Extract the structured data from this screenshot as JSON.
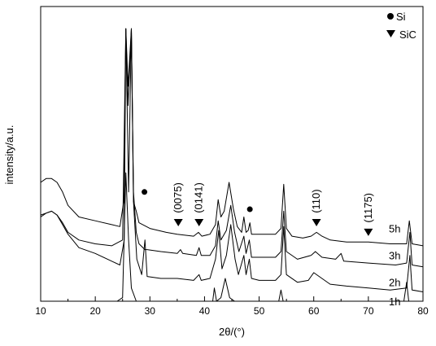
{
  "chart_data": {
    "type": "line",
    "title": "",
    "xlabel": "2θ/(°)",
    "ylabel": "intensity/a.u.",
    "xlim": [
      10,
      80
    ],
    "x_ticks": [
      10,
      20,
      30,
      40,
      50,
      60,
      70,
      80
    ],
    "x_tick_labels": [
      "10",
      "20",
      "30",
      "40",
      "50",
      "60",
      "70",
      "80"
    ],
    "y_ticks": false,
    "grid": false,
    "legend": {
      "position": "top-right",
      "entries": [
        {
          "marker": "circle",
          "label": "Si"
        },
        {
          "marker": "triangle-down",
          "label": "SiC"
        }
      ]
    },
    "series": [
      {
        "name": "5h",
        "points": [
          [
            10,
            0.5
          ],
          [
            11,
            0.52
          ],
          [
            12,
            0.52
          ],
          [
            13,
            0.5
          ],
          [
            14,
            0.45
          ],
          [
            15,
            0.38
          ],
          [
            17,
            0.32
          ],
          [
            20,
            0.3
          ],
          [
            23,
            0.28
          ],
          [
            24.5,
            0.27
          ],
          [
            25.2,
            0.4
          ],
          [
            25.6,
            1.3
          ],
          [
            26.1,
            0.45
          ],
          [
            26.6,
            1.3
          ],
          [
            27.0,
            0.4
          ],
          [
            27.5,
            0.35
          ],
          [
            28.0,
            0.29
          ],
          [
            30,
            0.26
          ],
          [
            33,
            0.24
          ],
          [
            35,
            0.23
          ],
          [
            38,
            0.22
          ],
          [
            38.9,
            0.24
          ],
          [
            39.5,
            0.22
          ],
          [
            41,
            0.23
          ],
          [
            42,
            0.28
          ],
          [
            42.5,
            0.41
          ],
          [
            43,
            0.32
          ],
          [
            43.6,
            0.35
          ],
          [
            44.5,
            0.5
          ],
          [
            45.3,
            0.36
          ],
          [
            46,
            0.27
          ],
          [
            46.8,
            0.24
          ],
          [
            47.2,
            0.32
          ],
          [
            47.6,
            0.24
          ],
          [
            48.0,
            0.25
          ],
          [
            48.3,
            0.29
          ],
          [
            48.6,
            0.23
          ],
          [
            50,
            0.23
          ],
          [
            53,
            0.23
          ],
          [
            54,
            0.26
          ],
          [
            54.5,
            0.49
          ],
          [
            55,
            0.26
          ],
          [
            56,
            0.22
          ],
          [
            58,
            0.21
          ],
          [
            59.5,
            0.22
          ],
          [
            60.5,
            0.24
          ],
          [
            61.5,
            0.22
          ],
          [
            63,
            0.2
          ],
          [
            66,
            0.19
          ],
          [
            70,
            0.19
          ],
          [
            74,
            0.18
          ],
          [
            77,
            0.18
          ],
          [
            77.5,
            0.3
          ],
          [
            78,
            0.18
          ],
          [
            80,
            0.17
          ]
        ]
      },
      {
        "name": "3h",
        "points": [
          [
            10,
            0.32
          ],
          [
            11,
            0.34
          ],
          [
            12,
            0.35
          ],
          [
            13,
            0.33
          ],
          [
            14,
            0.29
          ],
          [
            15,
            0.24
          ],
          [
            17,
            0.2
          ],
          [
            20,
            0.18
          ],
          [
            23,
            0.17
          ],
          [
            25,
            0.2
          ],
          [
            25.6,
            1.3
          ],
          [
            26,
            1.0
          ],
          [
            26.6,
            1.3
          ],
          [
            27,
            0.45
          ],
          [
            27.5,
            0.24
          ],
          [
            28,
            0.18
          ],
          [
            29.1,
            0.15
          ],
          [
            29.5,
            0.15
          ],
          [
            32,
            0.14
          ],
          [
            35,
            0.13
          ],
          [
            35.6,
            0.15
          ],
          [
            36,
            0.13
          ],
          [
            38.5,
            0.12
          ],
          [
            39,
            0.16
          ],
          [
            39.4,
            0.12
          ],
          [
            41,
            0.12
          ],
          [
            42,
            0.17
          ],
          [
            42.5,
            0.3
          ],
          [
            43,
            0.2
          ],
          [
            44,
            0.25
          ],
          [
            44.8,
            0.38
          ],
          [
            45.5,
            0.24
          ],
          [
            46.3,
            0.14
          ],
          [
            47.2,
            0.22
          ],
          [
            47.6,
            0.13
          ],
          [
            48.2,
            0.2
          ],
          [
            48.6,
            0.11
          ],
          [
            50,
            0.11
          ],
          [
            53,
            0.11
          ],
          [
            54,
            0.14
          ],
          [
            54.5,
            0.35
          ],
          [
            55,
            0.14
          ],
          [
            57,
            0.1
          ],
          [
            59.5,
            0.12
          ],
          [
            60.3,
            0.14
          ],
          [
            61.5,
            0.11
          ],
          [
            64,
            0.1
          ],
          [
            65,
            0.13
          ],
          [
            65.5,
            0.09
          ],
          [
            70,
            0.08
          ],
          [
            75,
            0.07
          ],
          [
            77,
            0.08
          ],
          [
            77.6,
            0.24
          ],
          [
            78,
            0.07
          ],
          [
            80,
            0.06
          ]
        ]
      },
      {
        "name": "2h",
        "points": [
          [
            10,
            0.33
          ],
          [
            11,
            0.34
          ],
          [
            12,
            0.35
          ],
          [
            13,
            0.33
          ],
          [
            14,
            0.28
          ],
          [
            15,
            0.23
          ],
          [
            17,
            0.16
          ],
          [
            20,
            0.13
          ],
          [
            23,
            0.09
          ],
          [
            24.5,
            0.07
          ],
          [
            25.3,
            0.2
          ],
          [
            25.6,
            1.3
          ],
          [
            26.0,
            0.9
          ],
          [
            26.6,
            1.3
          ],
          [
            27,
            0.4
          ],
          [
            27.6,
            0.1
          ],
          [
            28.5,
            0.02
          ],
          [
            29.1,
            0.2
          ],
          [
            29.5,
            0.01
          ],
          [
            32,
            0.0
          ],
          [
            35,
            0.0
          ],
          [
            38,
            -0.01
          ],
          [
            39,
            0.02
          ],
          [
            39.4,
            -0.01
          ],
          [
            41,
            0.0
          ],
          [
            42,
            0.1
          ],
          [
            42.6,
            0.25
          ],
          [
            43.2,
            0.05
          ],
          [
            44,
            0.12
          ],
          [
            44.8,
            0.28
          ],
          [
            45.6,
            0.1
          ],
          [
            46.2,
            0.02
          ],
          [
            47.2,
            0.12
          ],
          [
            47.6,
            0.02
          ],
          [
            48.2,
            0.1
          ],
          [
            48.6,
            0.0
          ],
          [
            50,
            -0.01
          ],
          [
            53,
            -0.01
          ],
          [
            54,
            0.02
          ],
          [
            54.5,
            0.27
          ],
          [
            55,
            0.02
          ],
          [
            57,
            -0.02
          ],
          [
            59,
            -0.01
          ],
          [
            60,
            0.03
          ],
          [
            61,
            0.01
          ],
          [
            63,
            -0.03
          ],
          [
            66,
            -0.04
          ],
          [
            70,
            -0.05
          ],
          [
            74,
            -0.06
          ],
          [
            77,
            -0.05
          ],
          [
            77.6,
            0.12
          ],
          [
            78,
            -0.06
          ],
          [
            80,
            -0.07
          ]
        ]
      },
      {
        "name": "1h",
        "points": [
          [
            10,
            -0.15
          ],
          [
            15,
            -0.15
          ],
          [
            20,
            -0.16
          ],
          [
            24,
            -0.15
          ],
          [
            25,
            -0.1
          ],
          [
            25.6,
            0.55
          ],
          [
            26.1,
            0.2
          ],
          [
            26.6,
            -0.05
          ],
          [
            27.5,
            -0.14
          ],
          [
            30,
            -0.16
          ],
          [
            35,
            -0.17
          ],
          [
            40,
            -0.17
          ],
          [
            41.5,
            -0.15
          ],
          [
            41.8,
            -0.05
          ],
          [
            42.2,
            -0.14
          ],
          [
            43,
            -0.1
          ],
          [
            43.8,
            0.0
          ],
          [
            44.6,
            -0.1
          ],
          [
            45.5,
            -0.15
          ],
          [
            48,
            -0.17
          ],
          [
            52,
            -0.17
          ],
          [
            53.6,
            -0.14
          ],
          [
            54,
            -0.06
          ],
          [
            54.4,
            -0.15
          ],
          [
            56,
            -0.17
          ],
          [
            58.5,
            -0.16
          ],
          [
            59.5,
            -0.14
          ],
          [
            60.5,
            -0.16
          ],
          [
            63,
            -0.18
          ],
          [
            68,
            -0.18
          ],
          [
            73,
            -0.19
          ],
          [
            76.5,
            -0.18
          ],
          [
            77,
            -0.02
          ],
          [
            77.4,
            -0.18
          ],
          [
            80,
            -0.19
          ]
        ]
      }
    ],
    "series_labels": [
      "5h",
      "3h",
      "2h",
      "1h"
    ],
    "markers": [
      {
        "type": "circle",
        "x": 29.0,
        "y": 0.45
      },
      {
        "type": "circle",
        "x": 48.3,
        "y": 0.36
      },
      {
        "type": "triangle-down",
        "x": 35.2,
        "y": 0.29
      },
      {
        "type": "triangle-down",
        "x": 39.0,
        "y": 0.29
      },
      {
        "type": "triangle-down",
        "x": 60.5,
        "y": 0.29
      },
      {
        "type": "triangle-down",
        "x": 70.0,
        "y": 0.24
      }
    ],
    "annotations": [
      {
        "text": "(0075)",
        "x": 35.2,
        "y": 0.34
      },
      {
        "text": "(0141)",
        "x": 39.0,
        "y": 0.34
      },
      {
        "text": "(110)",
        "x": 60.5,
        "y": 0.34
      },
      {
        "text": "(1175)",
        "x": 70.0,
        "y": 0.29
      }
    ]
  }
}
